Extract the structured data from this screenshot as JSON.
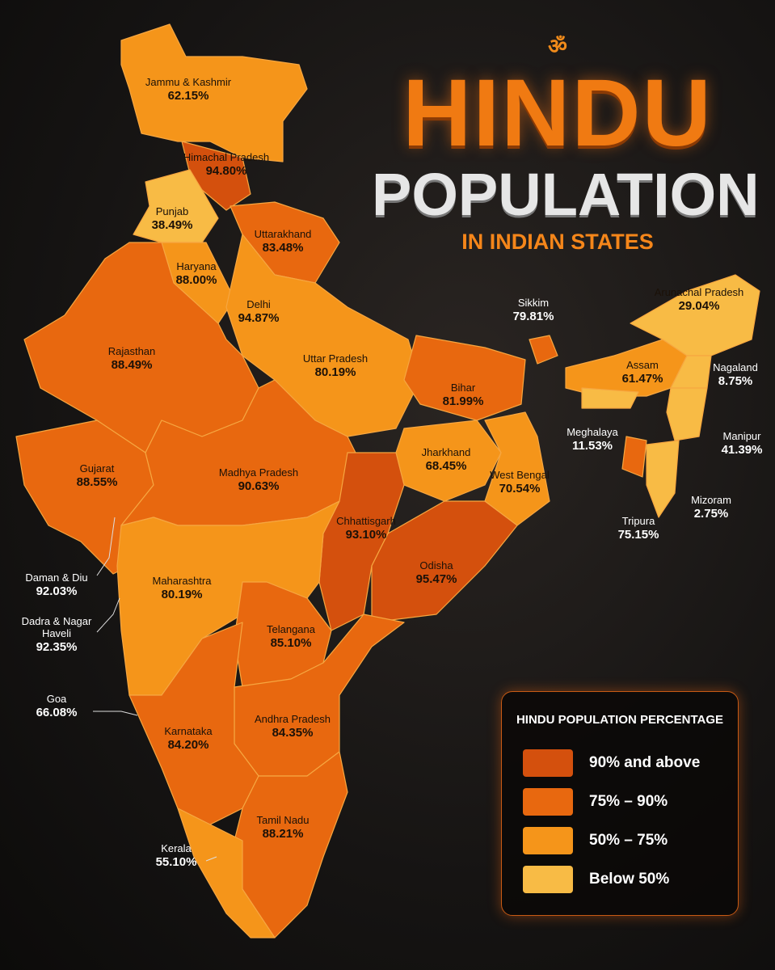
{
  "header": {
    "symbol": "ॐ",
    "title": "HINDU",
    "title_line_2": "POPULATION",
    "subtitle": "IN INDIAN STATES"
  },
  "states": [
    {
      "name": "Jammu & Kashmir",
      "value": "62.15%"
    },
    {
      "name": "Himachal Pradesh",
      "value": "94.80%"
    },
    {
      "name": "Punjab",
      "value": "38.49%"
    },
    {
      "name": "Uttarakhand",
      "value": "83.48%"
    },
    {
      "name": "Haryana",
      "value": "88.00%"
    },
    {
      "name": "Delhi",
      "value": "94.87%"
    },
    {
      "name": "Rajasthan",
      "value": "88.49%"
    },
    {
      "name": "Uttar Pradesh",
      "value": "80.19%"
    },
    {
      "name": "Bihar",
      "value": "81.99%"
    },
    {
      "name": "Sikkim",
      "value": "79.81%"
    },
    {
      "name": "Arunachal Pradesh",
      "value": "29.04%"
    },
    {
      "name": "Assam",
      "value": "61.47%"
    },
    {
      "name": "Nagaland",
      "value": "8.75%"
    },
    {
      "name": "Meghalaya",
      "value": "11.53%"
    },
    {
      "name": "Manipur",
      "value": "41.39%"
    },
    {
      "name": "Tripura",
      "value": "75.15%"
    },
    {
      "name": "Mizoram",
      "value": "2.75%"
    },
    {
      "name": "Jharkhand",
      "value": "68.45%"
    },
    {
      "name": "West Bengal",
      "value": "70.54%"
    },
    {
      "name": "Gujarat",
      "value": "88.55%"
    },
    {
      "name": "Madhya Pradesh",
      "value": "90.63%"
    },
    {
      "name": "Chhattisgarh",
      "value": "93.10%"
    },
    {
      "name": "Odisha",
      "value": "95.47%"
    },
    {
      "name": "Daman & Diu",
      "value": "92.03%"
    },
    {
      "name": "Maharashtra",
      "value": "80.19%"
    },
    {
      "name": "Dadra & Nagar Haveli",
      "value": "92.35%"
    },
    {
      "name": "Telangana",
      "value": "85.10%"
    },
    {
      "name": "Goa",
      "value": "66.08%"
    },
    {
      "name": "Andhra Pradesh",
      "value": "84.35%"
    },
    {
      "name": "Karnataka",
      "value": "84.20%"
    },
    {
      "name": "Tamil Nadu",
      "value": "88.21%"
    },
    {
      "name": "Kerala",
      "value": "55.10%"
    }
  ],
  "legend": {
    "title": "HINDU POPULATION PERCENTAGE",
    "items": [
      {
        "label": "90% and above",
        "color": "#d4500d"
      },
      {
        "label": "75% – 90%",
        "color": "#e8680f"
      },
      {
        "label": "50% – 75%",
        "color": "#f5951a"
      },
      {
        "label": "Below 50%",
        "color": "#f8bb45"
      }
    ]
  }
}
